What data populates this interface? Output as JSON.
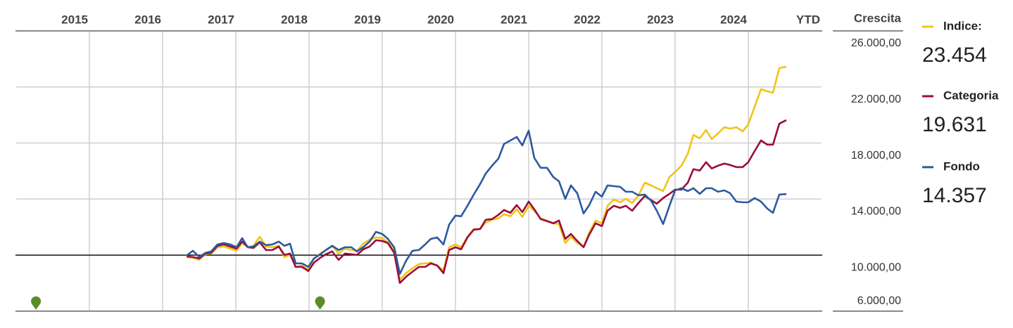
{
  "chart_data": {
    "type": "line",
    "y_axis_title": "Crescita",
    "xlim": [
      2015,
      2026
    ],
    "xticks": [
      {
        "value": 2015,
        "label": "2015"
      },
      {
        "value": 2016,
        "label": "2016"
      },
      {
        "value": 2017,
        "label": "2017"
      },
      {
        "value": 2018,
        "label": "2018"
      },
      {
        "value": 2019,
        "label": "2019"
      },
      {
        "value": 2020,
        "label": "2020"
      },
      {
        "value": 2021,
        "label": "2021"
      },
      {
        "value": 2022,
        "label": "2022"
      },
      {
        "value": 2023,
        "label": "2023"
      },
      {
        "value": 2024,
        "label": "2024"
      },
      {
        "value": 2025,
        "label": "YTD"
      }
    ],
    "ylim": [
      6000,
      26000
    ],
    "yticks": [
      {
        "value": 26000,
        "label": "26.000,00"
      },
      {
        "value": 22000,
        "label": "22.000,00"
      },
      {
        "value": 18000,
        "label": "18.000,00"
      },
      {
        "value": 14000,
        "label": "14.000,00"
      },
      {
        "value": 10000,
        "label": "10.000,00"
      },
      {
        "value": 6000,
        "label": "6.000,00"
      }
    ],
    "grid": true,
    "baseline": 10000,
    "legend": "right",
    "events": [
      2015.27,
      2019.15
    ],
    "x": [
      2017.327,
      2017.413,
      2017.5,
      2017.587,
      2017.663,
      2017.75,
      2017.837,
      2017.923,
      2018.01,
      2018.087,
      2018.163,
      2018.24,
      2018.327,
      2018.413,
      2018.5,
      2018.587,
      2018.663,
      2018.74,
      2018.817,
      2018.904,
      2018.99,
      2019.067,
      2019.154,
      2019.231,
      2019.317,
      2019.404,
      2019.49,
      2019.577,
      2019.654,
      2019.74,
      2019.827,
      2019.913,
      2020.0,
      2020.077,
      2020.163,
      2020.24,
      2020.327,
      2020.413,
      2020.5,
      2020.587,
      2020.663,
      2020.75,
      2020.837,
      2020.913,
      2021.0,
      2021.077,
      2021.163,
      2021.25,
      2021.337,
      2021.413,
      2021.5,
      2021.587,
      2021.663,
      2021.75,
      2021.837,
      2021.913,
      2022.0,
      2022.077,
      2022.163,
      2022.25,
      2022.337,
      2022.413,
      2022.5,
      2022.577,
      2022.663,
      2022.75,
      2022.827,
      2022.913,
      2023.0,
      2023.077,
      2023.163,
      2023.25,
      2023.327,
      2023.413,
      2023.5,
      2023.587,
      2023.673,
      2023.75,
      2023.837,
      2023.923,
      2024.0,
      2024.087,
      2024.173,
      2024.25,
      2024.337,
      2024.423,
      2024.5,
      2024.587,
      2024.673,
      2024.75,
      2024.837,
      2024.923,
      2025.0,
      2025.087,
      2025.173,
      2025.26,
      2025.337,
      2025.423,
      2025.519
    ],
    "series": [
      {
        "name": "Indice:",
        "legend_value": "23.454",
        "color": "#f0c419",
        "values": [
          9860,
          9810,
          9660,
          10060,
          10110,
          10560,
          10610,
          10460,
          10310,
          10860,
          10560,
          10660,
          11310,
          10610,
          10560,
          10660,
          9860,
          10010,
          9160,
          9260,
          8960,
          9760,
          10110,
          10360,
          10660,
          10110,
          10460,
          10360,
          10310,
          10810,
          11110,
          11260,
          11210,
          10910,
          10410,
          8260,
          8710,
          9060,
          9360,
          9410,
          9460,
          9260,
          8910,
          10560,
          10760,
          10560,
          11310,
          11860,
          11860,
          12320,
          12520,
          12620,
          12920,
          12770,
          13270,
          12720,
          13520,
          13170,
          12620,
          12470,
          12270,
          12220,
          10860,
          11310,
          10860,
          10610,
          11610,
          12470,
          12270,
          13520,
          13970,
          13770,
          14020,
          13720,
          14270,
          15170,
          14970,
          14770,
          14570,
          15570,
          15930,
          16380,
          17230,
          18580,
          18330,
          18930,
          18280,
          18680,
          19130,
          19030,
          19130,
          18830,
          19330,
          20590,
          21840,
          21690,
          21590,
          23340,
          23454
        ]
      },
      {
        "name": "Categoria",
        "legend_value": "19.631",
        "color": "#9b0d3a",
        "values": [
          9910,
          9860,
          9760,
          10110,
          10160,
          10660,
          10760,
          10610,
          10460,
          10960,
          10560,
          10510,
          10910,
          10360,
          10360,
          10610,
          10010,
          10110,
          9160,
          9160,
          8860,
          9460,
          9810,
          10060,
          10260,
          9660,
          10110,
          10060,
          10010,
          10410,
          10610,
          11060,
          11010,
          10860,
          10160,
          8010,
          8460,
          8810,
          9160,
          9160,
          9410,
          9260,
          8710,
          10360,
          10560,
          10410,
          11260,
          11810,
          11860,
          12520,
          12570,
          12870,
          13220,
          13020,
          13570,
          13070,
          13820,
          13270,
          12570,
          12420,
          12270,
          12470,
          11160,
          11510,
          11010,
          10560,
          11460,
          12270,
          12070,
          13170,
          13520,
          13370,
          13520,
          13170,
          13720,
          14220,
          13920,
          13670,
          14070,
          14370,
          14670,
          14670,
          15170,
          16130,
          16030,
          16630,
          16180,
          16380,
          16530,
          16430,
          16280,
          16280,
          16630,
          17430,
          18180,
          17880,
          17880,
          19380,
          19631
        ]
      },
      {
        "name": "Fondo",
        "legend_value": "14.357",
        "color": "#2a5aa0",
        "values": [
          9960,
          10310,
          9860,
          10160,
          10260,
          10760,
          10860,
          10760,
          10560,
          11210,
          10560,
          10610,
          10960,
          10710,
          10760,
          10960,
          10660,
          10810,
          9410,
          9410,
          9160,
          9760,
          10060,
          10360,
          10660,
          10360,
          10560,
          10560,
          10260,
          10560,
          10960,
          11660,
          11510,
          11160,
          10560,
          8660,
          9610,
          10310,
          10360,
          10760,
          11160,
          11260,
          10760,
          12170,
          12820,
          12770,
          13520,
          14320,
          15070,
          15820,
          16380,
          16880,
          17930,
          18180,
          18430,
          17830,
          18880,
          16930,
          16230,
          16230,
          15570,
          15270,
          14020,
          14970,
          14420,
          12970,
          13570,
          14520,
          14170,
          14970,
          14920,
          14870,
          14520,
          14520,
          14270,
          14320,
          13870,
          13170,
          12220,
          13520,
          14620,
          14770,
          14570,
          14770,
          14370,
          14770,
          14770,
          14520,
          14620,
          14420,
          13820,
          13770,
          13770,
          14070,
          13820,
          13320,
          13020,
          14320,
          14357
        ]
      }
    ]
  }
}
